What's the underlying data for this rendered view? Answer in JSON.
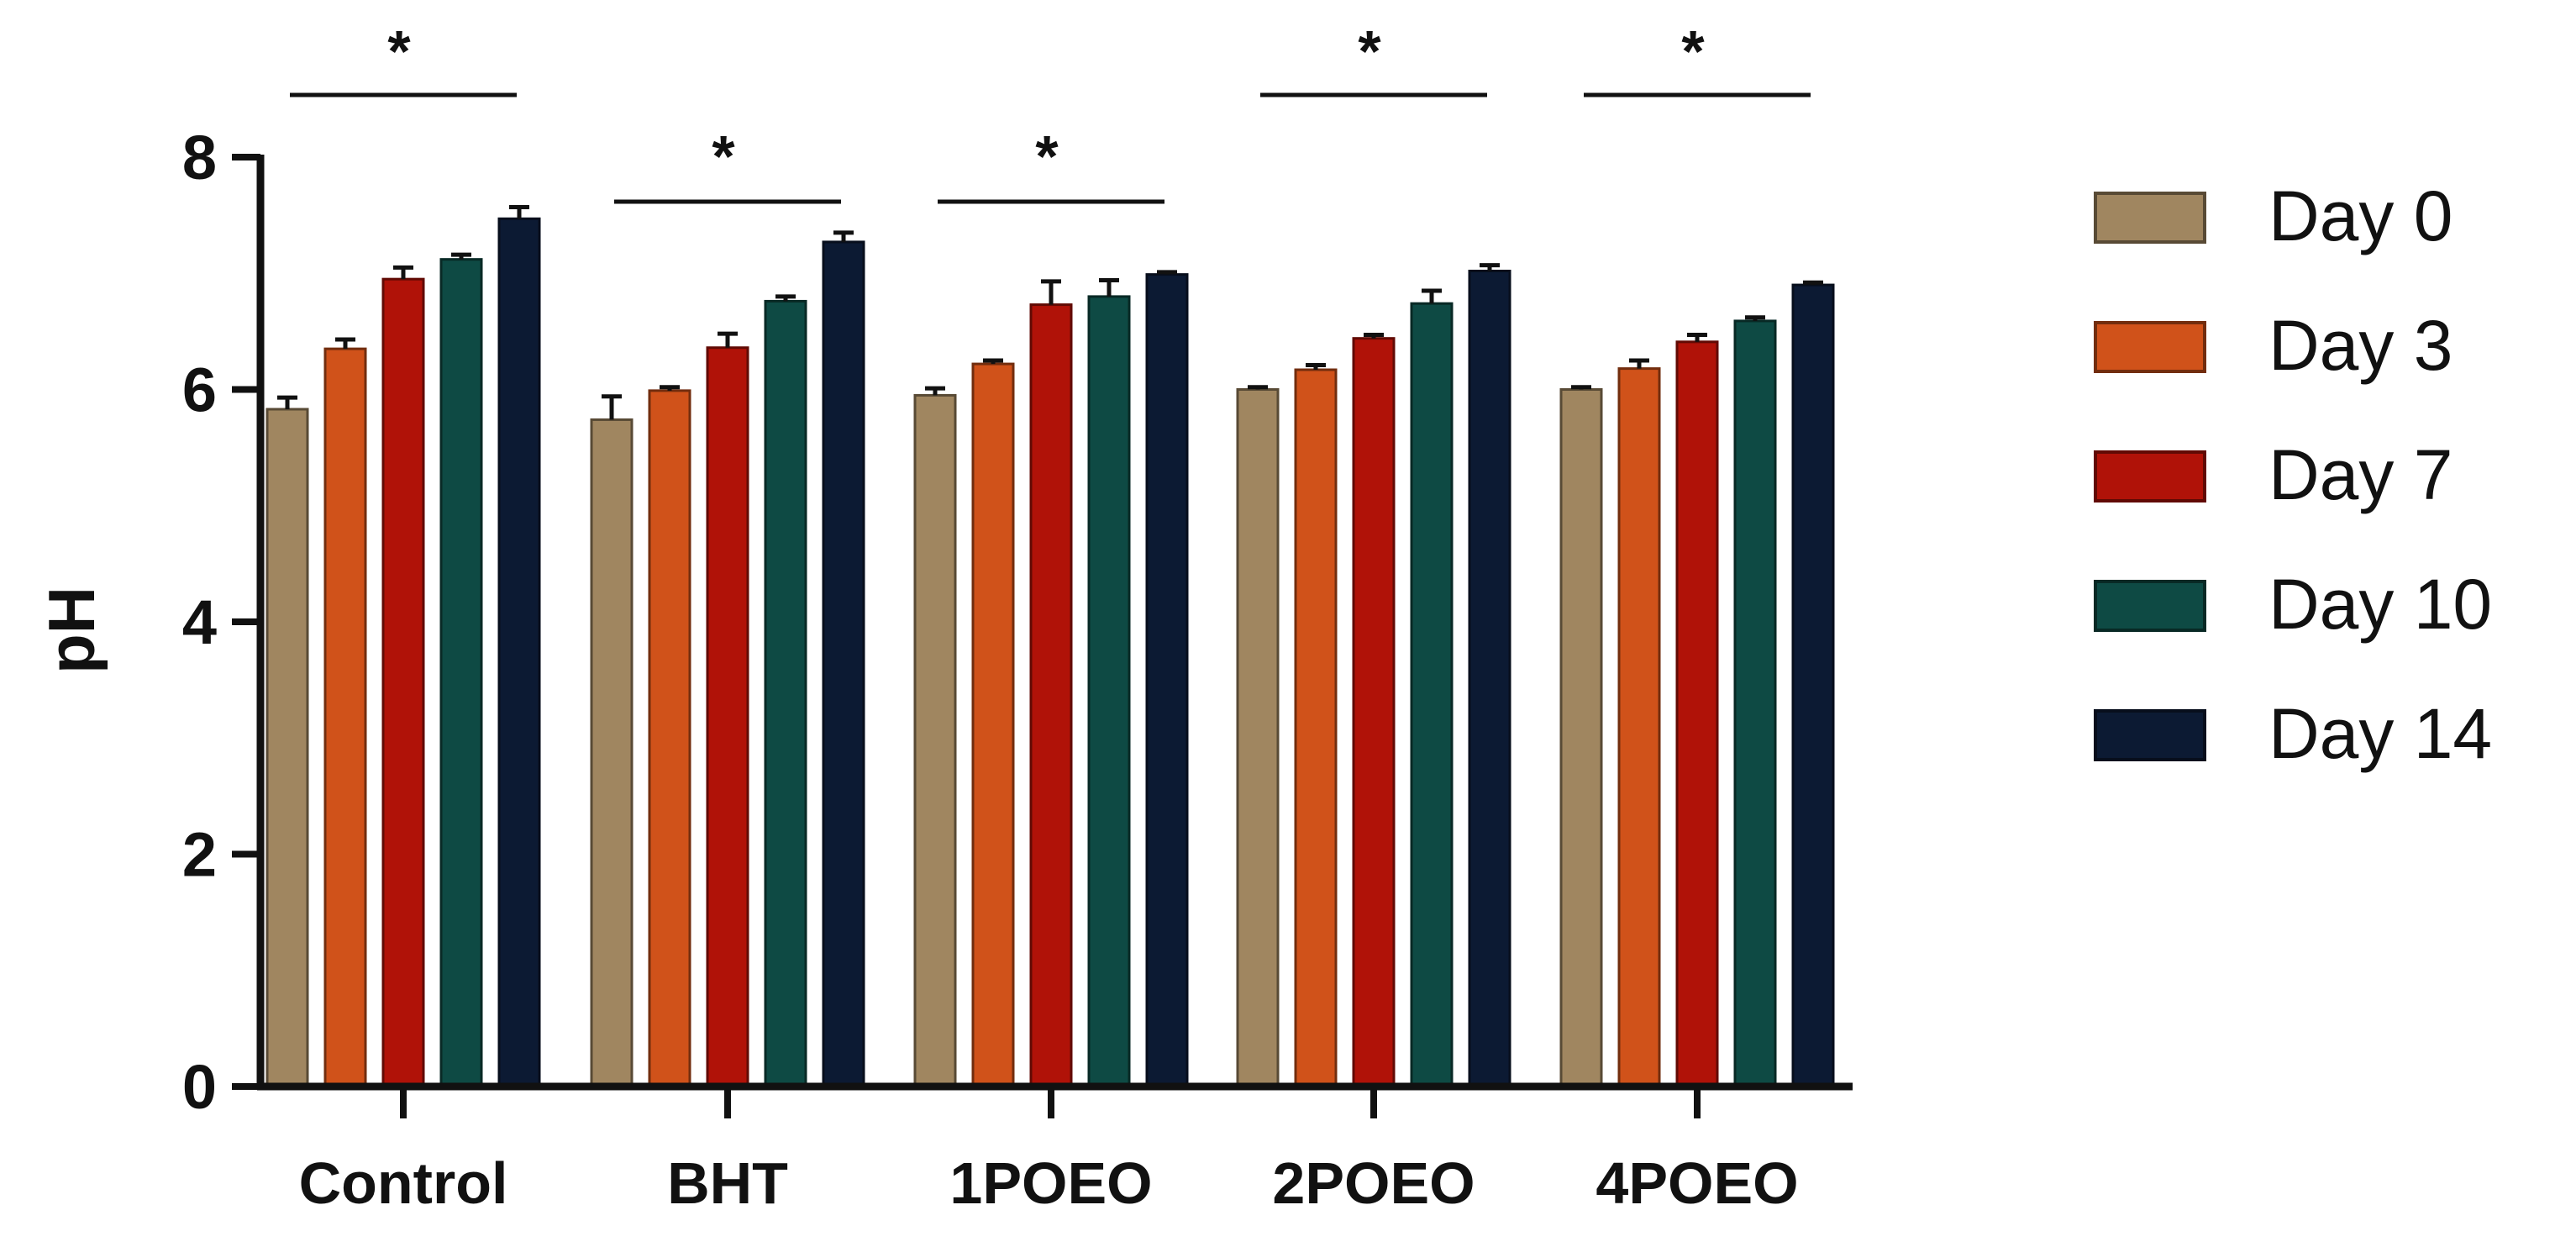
{
  "chart_data": {
    "type": "bar",
    "title": "",
    "xlabel": "",
    "ylabel": "pH",
    "ylim": [
      0,
      8
    ],
    "yticks": [
      "0",
      "2",
      "4",
      "6",
      "8"
    ],
    "grid": false,
    "legend_position": "right",
    "categories": [
      "Control",
      "BHT",
      "1POEO",
      "2POEO",
      "4POEO"
    ],
    "series": [
      {
        "name": "Day 0",
        "color": "#a08660",
        "values": [
          5.83,
          5.74,
          5.95,
          6.0,
          6.0
        ],
        "errors": [
          0.1,
          0.2,
          0.06,
          0.02,
          0.02
        ]
      },
      {
        "name": "Day 3",
        "color": "#d0521a",
        "values": [
          6.35,
          5.99,
          6.22,
          6.17,
          6.18
        ],
        "errors": [
          0.08,
          0.03,
          0.03,
          0.04,
          0.07
        ]
      },
      {
        "name": "Day 7",
        "color": "#b01208",
        "values": [
          6.95,
          6.36,
          6.73,
          6.44,
          6.41
        ],
        "errors": [
          0.1,
          0.12,
          0.2,
          0.03,
          0.06
        ]
      },
      {
        "name": "Day 10",
        "color": "#0e4a44",
        "values": [
          7.12,
          6.76,
          6.8,
          6.74,
          6.59
        ],
        "errors": [
          0.04,
          0.04,
          0.14,
          0.11,
          0.03
        ]
      },
      {
        "name": "Day 14",
        "color": "#0c1a33",
        "values": [
          7.47,
          7.27,
          6.99,
          7.02,
          6.9
        ],
        "errors": [
          0.1,
          0.08,
          0.02,
          0.05,
          0.02
        ]
      }
    ],
    "annotations": [
      {
        "text": "*",
        "category": "Control",
        "level": "high"
      },
      {
        "text": "*",
        "category": "BHT",
        "level": "low"
      },
      {
        "text": "*",
        "category": "1POEO",
        "level": "low"
      },
      {
        "text": "*",
        "category": "2POEO",
        "level": "high"
      },
      {
        "text": "*",
        "category": "4POEO",
        "level": "high"
      }
    ]
  }
}
